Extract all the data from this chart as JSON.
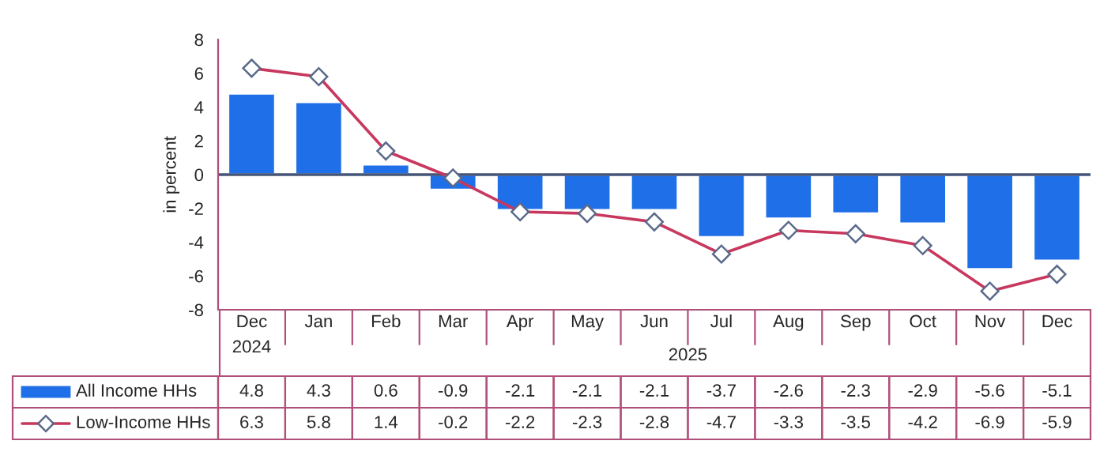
{
  "chart_data": {
    "type": "bar",
    "ylabel": "in percent",
    "categories": [
      "Dec\n2024",
      "Jan",
      "Feb",
      "Mar",
      "Apr",
      "May",
      "Jun",
      "Jul",
      "Aug",
      "Sep",
      "Oct",
      "Nov",
      "Dec"
    ],
    "series": [
      {
        "name": "All Income HHs",
        "color": "#1f6fe8",
        "values": [
          4.8,
          4.3,
          0.6,
          -0.9,
          -2.1,
          -2.1,
          -2.1,
          -3.7,
          -2.6,
          -2.3,
          -2.9,
          -5.6,
          -5.1
        ]
      },
      {
        "name": "Low-Income HHs",
        "type": "line",
        "color": "#c8385e",
        "marker": "diamond",
        "values": [
          6.3,
          5.8,
          1.4,
          -0.2,
          -2.2,
          -2.3,
          -2.8,
          -4.7,
          -3.3,
          -3.5,
          -4.2,
          -6.9,
          -5.9
        ]
      }
    ],
    "ylim": [
      -8,
      8
    ],
    "yticks": [
      -8,
      -6,
      -4,
      -2,
      0,
      2,
      4,
      6,
      8
    ],
    "grid": false,
    "ref_lines": [
      {
        "axis": "y",
        "value": 0,
        "color": "#445577"
      }
    ],
    "legend": "bottom",
    "data_labels": true,
    "annotations": [
      "2025"
    ]
  }
}
